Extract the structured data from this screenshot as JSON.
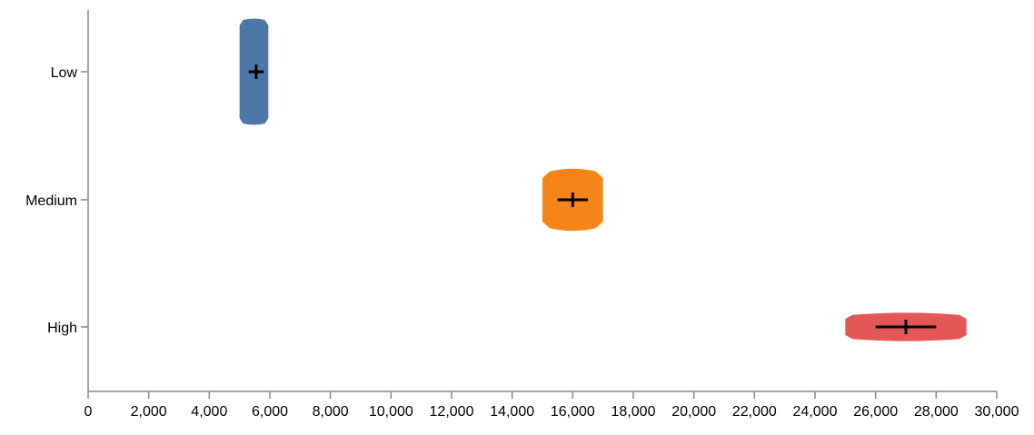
{
  "chart_data": {
    "type": "violin",
    "title": "",
    "xlabel": "",
    "ylabel": "",
    "xlim": [
      0,
      30000
    ],
    "x_ticks": [
      0,
      2000,
      4000,
      6000,
      8000,
      10000,
      12000,
      14000,
      16000,
      18000,
      20000,
      22000,
      24000,
      26000,
      28000,
      30000
    ],
    "x_tick_labels": [
      "0",
      "2,000",
      "4,000",
      "6,000",
      "8,000",
      "10,000",
      "12,000",
      "14,000",
      "16,000",
      "18,000",
      "20,000",
      "22,000",
      "24,000",
      "26,000",
      "28,000",
      "30,000"
    ],
    "categories": [
      "Low",
      "Medium",
      "High"
    ],
    "grid": false,
    "series": [
      {
        "category": "Low",
        "color": "#4c78a8",
        "min": 5000,
        "max": 5950,
        "mean": 5550,
        "ci_low": 5300,
        "ci_high": 5800
      },
      {
        "category": "Medium",
        "color": "#f58518",
        "min": 15000,
        "max": 17000,
        "mean": 16000,
        "ci_low": 15500,
        "ci_high": 16500
      },
      {
        "category": "High",
        "color": "#e45756",
        "min": 25000,
        "max": 29000,
        "mean": 27000,
        "ci_low": 26000,
        "ci_high": 28000
      }
    ]
  }
}
